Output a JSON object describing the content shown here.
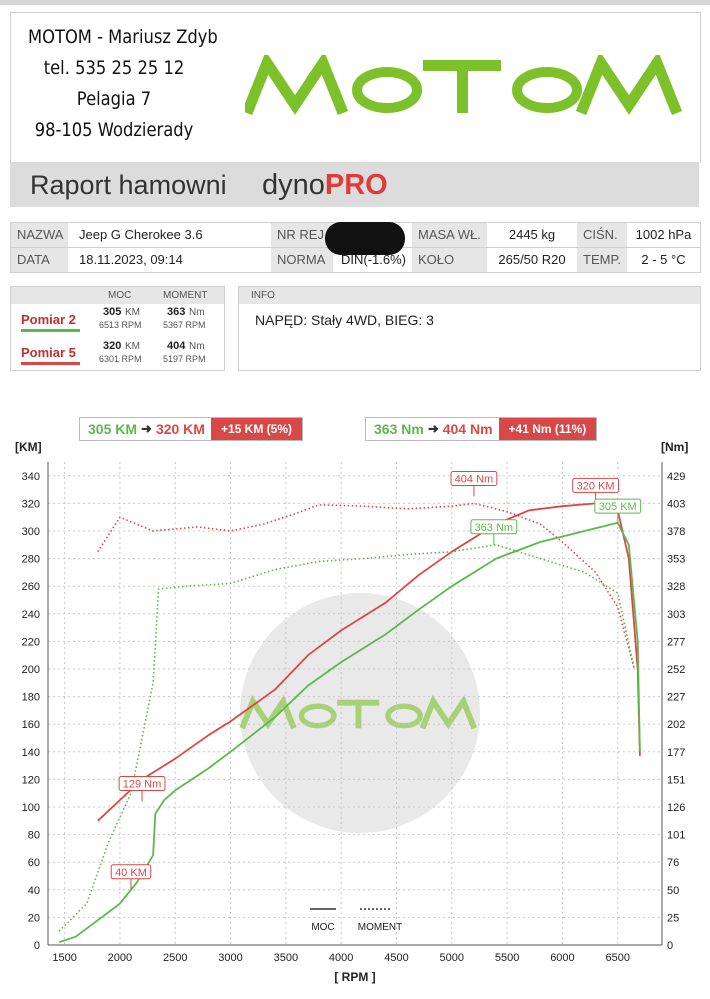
{
  "header": {
    "company_line": "MOTOM - Mariusz Zdyb",
    "phone": "tel. 535 25 25 12",
    "street": "Pelagia 7",
    "city": "98-105 Wodzierady",
    "logo_text": "MOTOM"
  },
  "report": {
    "title": "Raport hamowni",
    "brand_dyno": "dyno",
    "brand_pro": "PRO"
  },
  "vehicle": {
    "nazwa_label": "NAZWA",
    "nazwa": "Jeep G Cherokee 3.6",
    "nrrej_label": "NR REJ.",
    "nrrej": "",
    "masa_label": "MASA WŁ.",
    "masa": "2445 kg",
    "cisn_label": "CIŚN.",
    "cisn": "1002 hPa",
    "data_label": "DATA",
    "data": "18.11.2023, 09:14",
    "norma_label": "NORMA",
    "norma": "DIN(-1.6%)",
    "kolo_label": "KOŁO",
    "kolo": "265/50 R20",
    "temp_label": "TEMP.",
    "temp": "2 - 5 °C"
  },
  "measurements": {
    "moc_header": "MOC",
    "moment_header": "MOMENT",
    "rows": [
      {
        "name": "Pomiar 2",
        "color": "#5db84c",
        "power": "305",
        "power_unit": "KM",
        "power_rpm": "6513 RPM",
        "torque": "363",
        "torque_unit": "Nm",
        "torque_rpm": "5367 RPM"
      },
      {
        "name": "Pomiar 5",
        "color": "#d94848",
        "power": "320",
        "power_unit": "KM",
        "power_rpm": "6301 RPM",
        "torque": "404",
        "torque_unit": "Nm",
        "torque_rpm": "5197 RPM"
      }
    ]
  },
  "info": {
    "header": "INFO",
    "text": "NAPĘD: Stały 4WD,  BIEG: 3"
  },
  "comparison": {
    "power_from": "305 KM",
    "power_to": "320 KM",
    "power_diff": "+15 KM  (5%)",
    "torque_from": "363 Nm",
    "torque_to": "404 Nm",
    "torque_diff": "+41 Nm  (11%)"
  },
  "colors": {
    "green": "#5db84c",
    "red": "#d94848",
    "grid": "#c8c8c8"
  },
  "chart_data": {
    "type": "line",
    "xlabel": "[ RPM ]",
    "ylabel_left": "[KM]",
    "ylabel_right": "[Nm]",
    "xlim": [
      1350,
      6900
    ],
    "ylim_left": [
      0,
      350
    ],
    "x_ticks": [
      1500,
      2000,
      2500,
      3000,
      3500,
      4000,
      4500,
      5000,
      5500,
      6000,
      6500
    ],
    "y_ticks_left": [
      0,
      20,
      40,
      60,
      80,
      100,
      120,
      140,
      160,
      180,
      200,
      220,
      240,
      260,
      280,
      300,
      320,
      340
    ],
    "y_ticks_right": [
      "0",
      "25",
      "50",
      "76",
      "101",
      "126",
      "151",
      "177",
      "202",
      "227",
      "252",
      "277",
      "303",
      "328",
      "353",
      "378",
      "403",
      "429"
    ],
    "legend": {
      "moc": "MOC",
      "moment": "MOMENT"
    },
    "annotations": [
      {
        "text": "404 Nm",
        "series": "Pomiar 5 moment",
        "x": 5200,
        "y": 325
      },
      {
        "text": "320 KM",
        "series": "Pomiar 5 moc",
        "x": 6300,
        "y": 320
      },
      {
        "text": "305 KM",
        "series": "Pomiar 2 moc",
        "x": 6500,
        "y": 305
      },
      {
        "text": "363 Nm",
        "series": "Pomiar 2 moment",
        "x": 5380,
        "y": 290
      },
      {
        "text": "129 Nm",
        "series": "Pomiar 5 moment",
        "x": 2200,
        "y": 104
      },
      {
        "text": "40 KM",
        "series": "Pomiar 5 moc",
        "x": 2100,
        "y": 40
      }
    ],
    "series": [
      {
        "name": "Pomiar 5",
        "kind": "moc",
        "color": "#d94848",
        "dashed": false,
        "x": [
          1800,
          2000,
          2200,
          2500,
          2800,
          3000,
          3400,
          3700,
          4000,
          4400,
          4700,
          5000,
          5400,
          5700,
          6000,
          6300,
          6500,
          6600,
          6680,
          6700
        ],
        "y": [
          90,
          105,
          120,
          135,
          152,
          162,
          185,
          210,
          228,
          248,
          268,
          285,
          305,
          315,
          318,
          320,
          315,
          280,
          200,
          137
        ]
      },
      {
        "name": "Pomiar 2",
        "kind": "moc",
        "color": "#5db84c",
        "dashed": false,
        "x": [
          1450,
          1600,
          1800,
          2000,
          2150,
          2300,
          2320,
          2400,
          2500,
          2800,
          3000,
          3400,
          3700,
          4000,
          4400,
          4700,
          5000,
          5400,
          5800,
          6200,
          6500,
          6600,
          6680,
          6700
        ],
        "y": [
          2,
          6,
          18,
          30,
          45,
          65,
          95,
          105,
          112,
          128,
          140,
          165,
          188,
          205,
          225,
          243,
          260,
          280,
          292,
          300,
          306,
          290,
          220,
          140
        ]
      },
      {
        "name": "Pomiar 5",
        "kind": "moment",
        "color": "#d94848",
        "dashed": true,
        "x": [
          1800,
          2000,
          2300,
          2700,
          3000,
          3300,
          3600,
          3800,
          4200,
          4600,
          5000,
          5200,
          5500,
          5800,
          6000,
          6300,
          6500,
          6650
        ],
        "y": [
          285,
          310,
          300,
          303,
          300,
          305,
          313,
          319,
          318,
          316,
          318,
          320,
          314,
          305,
          292,
          270,
          245,
          200
        ]
      },
      {
        "name": "Pomiar 2",
        "kind": "moment",
        "color": "#5db84c",
        "dashed": true,
        "x": [
          1450,
          1700,
          1900,
          2100,
          2300,
          2350,
          2600,
          3000,
          3400,
          3800,
          4200,
          4600,
          5000,
          5400,
          5800,
          6200,
          6500,
          6650
        ],
        "y": [
          10,
          30,
          75,
          110,
          190,
          258,
          260,
          262,
          272,
          278,
          280,
          283,
          285,
          290,
          280,
          270,
          255,
          200
        ]
      }
    ]
  }
}
